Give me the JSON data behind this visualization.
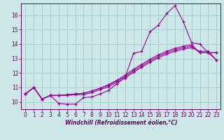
{
  "xlabel": "Windchill (Refroidissement éolien,°C)",
  "background_color": "#cce8e8",
  "grid_color": "#aacccc",
  "line_color": "#990099",
  "x_ticks": [
    0,
    1,
    2,
    3,
    4,
    5,
    6,
    7,
    8,
    9,
    10,
    11,
    12,
    13,
    14,
    15,
    16,
    17,
    18,
    19,
    20,
    21,
    22,
    23
  ],
  "y_ticks": [
    10,
    11,
    12,
    13,
    14,
    15,
    16
  ],
  "ylim": [
    9.5,
    16.8
  ],
  "xlim": [
    -0.5,
    23.5
  ],
  "line1_x": [
    0,
    1,
    2,
    3,
    4,
    5,
    6,
    7,
    8,
    9,
    10,
    11,
    12,
    13,
    14,
    15,
    16,
    17,
    18,
    19,
    20,
    21,
    22,
    23
  ],
  "line1_y": [
    10.55,
    11.0,
    10.2,
    10.45,
    9.9,
    9.85,
    9.85,
    10.3,
    10.35,
    10.55,
    10.8,
    11.25,
    11.7,
    13.35,
    13.5,
    14.85,
    15.3,
    16.1,
    16.65,
    15.55,
    14.1,
    14.0,
    13.4,
    12.9
  ],
  "line2_x": [
    0,
    1,
    2,
    3,
    4,
    5,
    6,
    7,
    8,
    9,
    10,
    11,
    12,
    13,
    14,
    15,
    16,
    17,
    18,
    19,
    20,
    21,
    22,
    23
  ],
  "line2_y": [
    10.55,
    11.0,
    10.2,
    10.45,
    10.45,
    10.45,
    10.5,
    10.5,
    10.65,
    10.85,
    11.05,
    11.35,
    11.65,
    12.05,
    12.4,
    12.75,
    13.05,
    13.3,
    13.5,
    13.65,
    13.75,
    13.5,
    13.5,
    12.9
  ],
  "line3_x": [
    0,
    1,
    2,
    3,
    4,
    5,
    6,
    7,
    8,
    9,
    10,
    11,
    12,
    13,
    14,
    15,
    16,
    17,
    18,
    19,
    20,
    21,
    22,
    23
  ],
  "line3_y": [
    10.55,
    11.0,
    10.2,
    10.45,
    10.45,
    10.5,
    10.55,
    10.6,
    10.75,
    10.95,
    11.15,
    11.45,
    11.75,
    12.15,
    12.5,
    12.85,
    13.15,
    13.4,
    13.6,
    13.75,
    13.85,
    13.4,
    13.4,
    13.4
  ],
  "line4_x": [
    0,
    1,
    2,
    3,
    4,
    5,
    6,
    7,
    8,
    9,
    10,
    11,
    12,
    13,
    14,
    15,
    16,
    17,
    18,
    19,
    20,
    21,
    22,
    23
  ],
  "line4_y": [
    10.55,
    11.0,
    10.2,
    10.45,
    10.45,
    10.5,
    10.55,
    10.6,
    10.75,
    10.95,
    11.2,
    11.5,
    11.85,
    12.25,
    12.6,
    12.95,
    13.25,
    13.5,
    13.7,
    13.85,
    13.95,
    13.4,
    13.4,
    13.4
  ],
  "tick_labelsize": 5.5,
  "xlabel_fontsize": 5.5,
  "spine_color": "#660066",
  "tick_color": "#660066",
  "label_color": "#660066"
}
